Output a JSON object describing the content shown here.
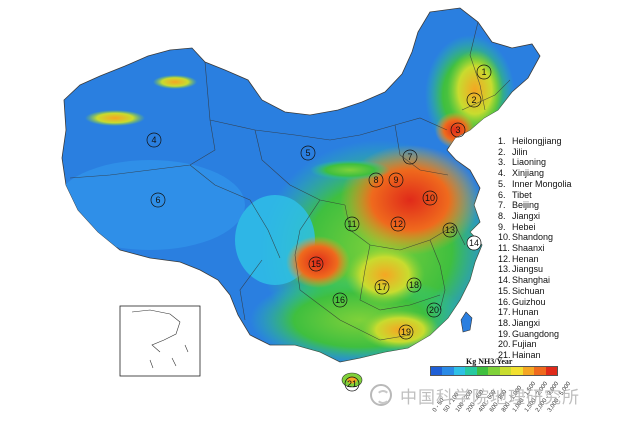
{
  "legend": {
    "provinces": [
      {
        "num": "1.",
        "name": "Heilongjiang"
      },
      {
        "num": "2.",
        "name": "Jilin"
      },
      {
        "num": "3.",
        "name": "Liaoning"
      },
      {
        "num": "4.",
        "name": "Xinjiang"
      },
      {
        "num": "5.",
        "name": "Inner Mongolia"
      },
      {
        "num": "6.",
        "name": "Tibet"
      },
      {
        "num": "7.",
        "name": "Beijing"
      },
      {
        "num": "8.",
        "name": "Jiangxi"
      },
      {
        "num": "9.",
        "name": "Hebei"
      },
      {
        "num": "10.",
        "name": "Shandong"
      },
      {
        "num": "11.",
        "name": "Shaanxi"
      },
      {
        "num": "12.",
        "name": "Henan"
      },
      {
        "num": "13.",
        "name": "Jiangsu"
      },
      {
        "num": "14.",
        "name": "Shanghai"
      },
      {
        "num": "15.",
        "name": "Sichuan"
      },
      {
        "num": "16.",
        "name": "Guizhou"
      },
      {
        "num": "17.",
        "name": "Hunan"
      },
      {
        "num": "18.",
        "name": "Jiangxi"
      },
      {
        "num": "19.",
        "name": "Guangdong"
      },
      {
        "num": "20.",
        "name": "Fujian"
      },
      {
        "num": "21.",
        "name": "Hainan"
      }
    ]
  },
  "map_labels": [
    "1",
    "2",
    "3",
    "4",
    "5",
    "6",
    "7",
    "8",
    "9",
    "10",
    "11",
    "12",
    "13",
    "14",
    "15",
    "16",
    "17",
    "18",
    "19",
    "20",
    "21"
  ],
  "scale": {
    "title": "Kg NH3/Year",
    "colors": [
      "#1f5fd6",
      "#2a8ae6",
      "#2fc0e6",
      "#27c9a0",
      "#3fbf3f",
      "#7fd13a",
      "#c8dc2f",
      "#f2e030",
      "#f5a623",
      "#ef6a1d",
      "#e02a1a"
    ],
    "ticks": [
      "0 - 50",
      "50 - 100",
      "100 - 200",
      "200 - 400",
      "400 - 600",
      "600 - 800",
      "800 - 1,000",
      "1,000 - 1,500",
      "1,500 - 2,000",
      "2,000 - 3,000",
      "3,000 - 5,000"
    ]
  },
  "watermark": "中国科学院地理研究所"
}
